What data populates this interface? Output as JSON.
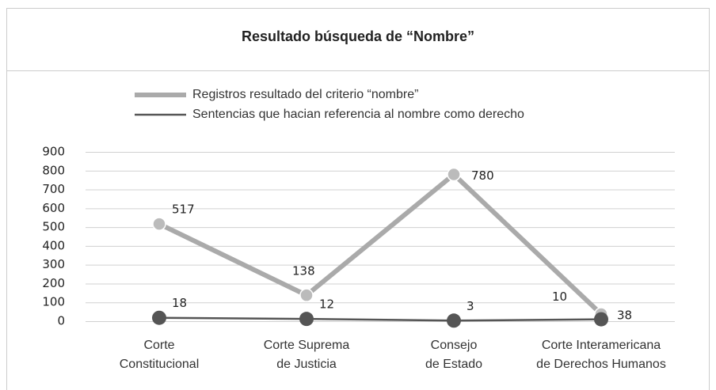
{
  "chart_data": {
    "type": "line",
    "title": "Resultado búsqueda de “Nombre”",
    "categories": [
      [
        "Corte",
        "Constitucional"
      ],
      [
        "Corte Suprema",
        "de Justicia"
      ],
      [
        "Consejo",
        "de Estado"
      ],
      [
        "Corte Interamericana",
        "de Derechos Humanos"
      ]
    ],
    "series": [
      {
        "name": "Registros resultado del criterio “nombre”",
        "color": "#aaaaaa",
        "values": [
          517,
          138,
          780,
          38
        ]
      },
      {
        "name": "Sentencias que hacian referencia al nombre como derecho",
        "color": "#555555",
        "values": [
          18,
          12,
          3,
          10
        ]
      }
    ],
    "ylim": [
      0,
      900
    ],
    "yticks": [
      0,
      100,
      200,
      300,
      400,
      500,
      600,
      700,
      800,
      900
    ],
    "grid": true,
    "legend": "top"
  }
}
